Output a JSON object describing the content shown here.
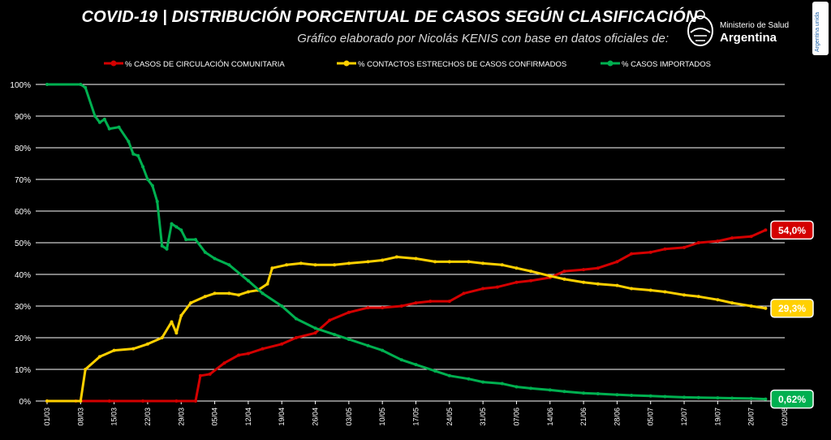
{
  "header": {
    "title": "COVID-19  |  DISTRIBUCIÓN PORCENTUAL DE CASOS SEGÚN CLASIFICACIÓN",
    "subtitle": "Gráfico elaborado por Nicolás KENIS con base en datos oficiales de:",
    "ministry": "Ministerio de Salud",
    "country": "Argentina",
    "side_tag": "Argentina unida"
  },
  "chart_data": {
    "type": "line",
    "title": "COVID-19  |  DISTRIBUCIÓN PORCENTUAL DE CASOS SEGÚN CLASIFICACIÓN",
    "ylim": [
      0,
      100
    ],
    "y_ticks": [
      "0%",
      "10%",
      "20%",
      "30%",
      "40%",
      "50%",
      "60%",
      "70%",
      "80%",
      "90%",
      "100%"
    ],
    "x_ticks": [
      "01/03",
      "08/03",
      "15/03",
      "22/03",
      "29/03",
      "05/04",
      "12/04",
      "19/04",
      "26/04",
      "03/05",
      "10/05",
      "17/05",
      "24/05",
      "31/05",
      "07/06",
      "14/06",
      "21/06",
      "28/06",
      "05/07",
      "12/07",
      "19/07",
      "26/07",
      "02/08"
    ],
    "x_start": "01/03",
    "x_end": "02/08",
    "grid": true,
    "legend_position": "top",
    "series": [
      {
        "name": "% CASOS DE CIRCULACIÓN COMUNITARIA",
        "color": "#d40000",
        "end_label": "54,0%",
        "points": [
          [
            "01/03",
            0
          ],
          [
            "07/03",
            0
          ],
          [
            "14/03",
            0
          ],
          [
            "21/03",
            0
          ],
          [
            "28/03",
            0
          ],
          [
            "01/04",
            0
          ],
          [
            "02/04",
            8
          ],
          [
            "04/04",
            8.5
          ],
          [
            "07/04",
            12
          ],
          [
            "10/04",
            14.5
          ],
          [
            "12/04",
            15
          ],
          [
            "15/04",
            16.5
          ],
          [
            "19/04",
            18
          ],
          [
            "22/04",
            20
          ],
          [
            "26/04",
            21.5
          ],
          [
            "29/04",
            25.5
          ],
          [
            "03/05",
            28
          ],
          [
            "07/05",
            29.5
          ],
          [
            "10/05",
            29.5
          ],
          [
            "14/05",
            30
          ],
          [
            "17/05",
            31
          ],
          [
            "20/05",
            31.5
          ],
          [
            "24/05",
            31.5
          ],
          [
            "27/05",
            34
          ],
          [
            "31/05",
            35.5
          ],
          [
            "03/06",
            36
          ],
          [
            "07/06",
            37.5
          ],
          [
            "10/06",
            38
          ],
          [
            "14/06",
            39
          ],
          [
            "17/06",
            41
          ],
          [
            "21/06",
            41.5
          ],
          [
            "24/06",
            42
          ],
          [
            "28/06",
            44
          ],
          [
            "01/07",
            46.5
          ],
          [
            "05/07",
            47
          ],
          [
            "08/07",
            48
          ],
          [
            "12/07",
            48.5
          ],
          [
            "15/07",
            50
          ],
          [
            "19/07",
            50.5
          ],
          [
            "22/07",
            51.5
          ],
          [
            "26/07",
            52
          ],
          [
            "29/07",
            54
          ]
        ]
      },
      {
        "name": "% CONTACTOS ESTRECHOS DE CASOS CONFIRMADOS",
        "color": "#ffd000",
        "end_label": "29,3%",
        "points": [
          [
            "01/03",
            0
          ],
          [
            "08/03",
            0
          ],
          [
            "09/03",
            10
          ],
          [
            "12/03",
            14
          ],
          [
            "15/03",
            16
          ],
          [
            "19/03",
            16.5
          ],
          [
            "22/03",
            18
          ],
          [
            "25/03",
            20
          ],
          [
            "27/03",
            25
          ],
          [
            "28/03",
            21.5
          ],
          [
            "29/03",
            27
          ],
          [
            "31/03",
            31
          ],
          [
            "03/04",
            33
          ],
          [
            "05/04",
            34
          ],
          [
            "08/04",
            34
          ],
          [
            "10/04",
            33.5
          ],
          [
            "12/04",
            34.5
          ],
          [
            "14/04",
            35
          ],
          [
            "16/04",
            37
          ],
          [
            "17/04",
            42
          ],
          [
            "20/04",
            43
          ],
          [
            "23/04",
            43.5
          ],
          [
            "26/04",
            43
          ],
          [
            "30/04",
            43
          ],
          [
            "03/05",
            43.5
          ],
          [
            "07/05",
            44
          ],
          [
            "10/05",
            44.5
          ],
          [
            "13/05",
            45.5
          ],
          [
            "17/05",
            45
          ],
          [
            "21/05",
            44
          ],
          [
            "24/05",
            44
          ],
          [
            "28/05",
            44
          ],
          [
            "31/05",
            43.5
          ],
          [
            "04/06",
            43
          ],
          [
            "07/06",
            42
          ],
          [
            "10/06",
            41
          ],
          [
            "14/06",
            39.5
          ],
          [
            "17/06",
            38.5
          ],
          [
            "21/06",
            37.5
          ],
          [
            "24/06",
            37
          ],
          [
            "28/06",
            36.5
          ],
          [
            "01/07",
            35.5
          ],
          [
            "05/07",
            35
          ],
          [
            "08/07",
            34.5
          ],
          [
            "12/07",
            33.5
          ],
          [
            "15/07",
            33
          ],
          [
            "19/07",
            32
          ],
          [
            "22/07",
            31
          ],
          [
            "26/07",
            30
          ],
          [
            "29/07",
            29.3
          ]
        ]
      },
      {
        "name": "% CASOS IMPORTADOS",
        "color": "#00b050",
        "end_label": "0,62%",
        "points": [
          [
            "01/03",
            100
          ],
          [
            "08/03",
            100
          ],
          [
            "09/03",
            99
          ],
          [
            "11/03",
            90
          ],
          [
            "12/03",
            88
          ],
          [
            "13/03",
            89
          ],
          [
            "14/03",
            86
          ],
          [
            "16/03",
            86.5
          ],
          [
            "18/03",
            82
          ],
          [
            "19/03",
            78
          ],
          [
            "20/03",
            77.5
          ],
          [
            "21/03",
            74
          ],
          [
            "22/03",
            70
          ],
          [
            "23/03",
            68
          ],
          [
            "24/03",
            63
          ],
          [
            "25/03",
            49
          ],
          [
            "26/03",
            48
          ],
          [
            "27/03",
            56
          ],
          [
            "28/03",
            55
          ],
          [
            "29/03",
            54
          ],
          [
            "30/03",
            51
          ],
          [
            "01/04",
            51
          ],
          [
            "03/04",
            47
          ],
          [
            "05/04",
            45
          ],
          [
            "08/04",
            43
          ],
          [
            "12/04",
            38
          ],
          [
            "15/04",
            34
          ],
          [
            "19/04",
            30
          ],
          [
            "22/04",
            26
          ],
          [
            "26/04",
            23
          ],
          [
            "30/04",
            21
          ],
          [
            "03/05",
            19.5
          ],
          [
            "07/05",
            17.5
          ],
          [
            "10/05",
            16
          ],
          [
            "14/05",
            13
          ],
          [
            "17/05",
            11.5
          ],
          [
            "21/05",
            9.5
          ],
          [
            "24/05",
            8
          ],
          [
            "28/05",
            7
          ],
          [
            "31/05",
            6
          ],
          [
            "04/06",
            5.5
          ],
          [
            "07/06",
            4.5
          ],
          [
            "10/06",
            4
          ],
          [
            "14/06",
            3.5
          ],
          [
            "17/06",
            3
          ],
          [
            "21/06",
            2.5
          ],
          [
            "24/06",
            2.3
          ],
          [
            "28/06",
            2
          ],
          [
            "01/07",
            1.8
          ],
          [
            "05/07",
            1.6
          ],
          [
            "08/07",
            1.4
          ],
          [
            "12/07",
            1.2
          ],
          [
            "15/07",
            1.1
          ],
          [
            "19/07",
            1
          ],
          [
            "22/07",
            0.9
          ],
          [
            "26/07",
            0.8
          ],
          [
            "29/07",
            0.62
          ]
        ]
      }
    ]
  }
}
